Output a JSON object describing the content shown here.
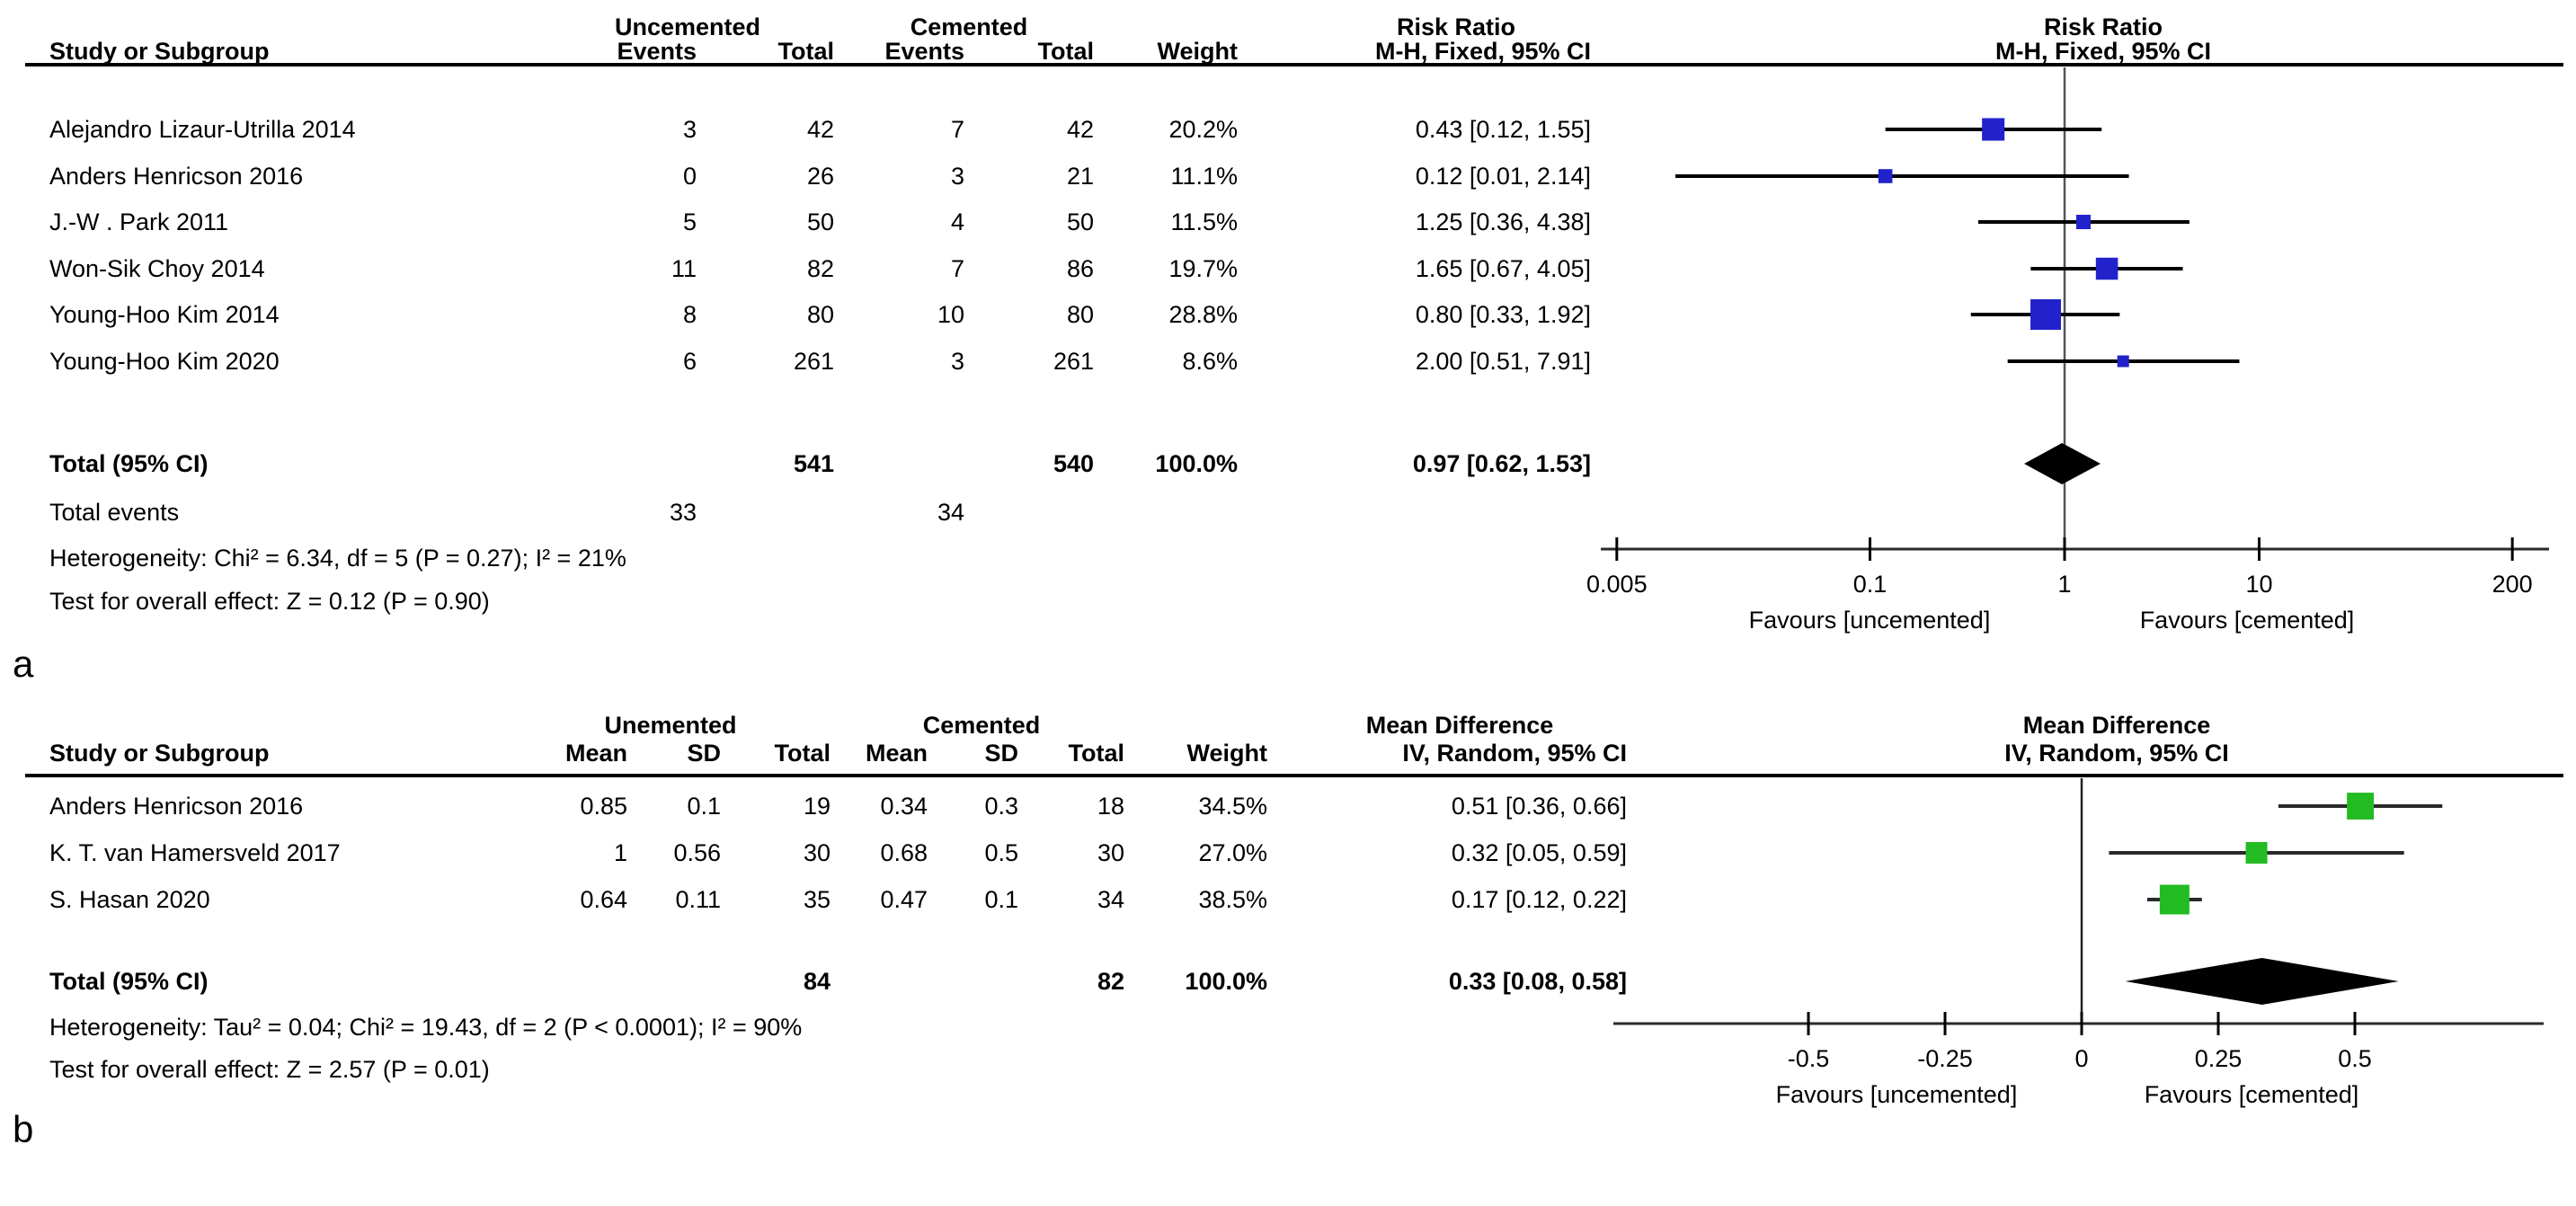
{
  "figure_labels": {
    "panel_a": "a",
    "panel_b": "b"
  },
  "panels": [
    {
      "label": "a",
      "marker_color": "#2222cc",
      "diamond_color": "#000000",
      "group_headers": [
        "Uncemented",
        "Cemented",
        "Risk Ratio",
        "Risk Ratio"
      ],
      "col_headers": [
        "Study or Subgroup",
        "Events",
        "Total",
        "Events",
        "Total",
        "Weight",
        "M-H, Fixed, 95% CI",
        "M-H, Fixed, 95% CI"
      ],
      "rows": [
        {
          "cells": [
            "Alejandro Lizaur-Utrilla 2014",
            "3",
            "42",
            "7",
            "42",
            "20.2%",
            "0.43 [0.12, 1.55]"
          ],
          "est": 0.43,
          "lo": 0.12,
          "hi": 1.55,
          "weight": 20.2
        },
        {
          "cells": [
            "Anders Henricson 2016",
            "0",
            "26",
            "3",
            "21",
            "11.1%",
            "0.12 [0.01, 2.14]"
          ],
          "est": 0.12,
          "lo": 0.01,
          "hi": 2.14,
          "weight": 11.1
        },
        {
          "cells": [
            "J.-W . Park 2011",
            "5",
            "50",
            "4",
            "50",
            "11.5%",
            "1.25 [0.36, 4.38]"
          ],
          "est": 1.25,
          "lo": 0.36,
          "hi": 4.38,
          "weight": 11.5
        },
        {
          "cells": [
            "Won-Sik Choy 2014",
            "11",
            "82",
            "7",
            "86",
            "19.7%",
            "1.65 [0.67, 4.05]"
          ],
          "est": 1.65,
          "lo": 0.67,
          "hi": 4.05,
          "weight": 19.7
        },
        {
          "cells": [
            "Young-Hoo Kim 2014",
            "8",
            "80",
            "10",
            "80",
            "28.8%",
            "0.80 [0.33, 1.92]"
          ],
          "est": 0.8,
          "lo": 0.33,
          "hi": 1.92,
          "weight": 28.8
        },
        {
          "cells": [
            "Young-Hoo Kim 2020",
            "6",
            "261",
            "3",
            "261",
            "8.6%",
            "2.00 [0.51, 7.91]"
          ],
          "est": 2.0,
          "lo": 0.51,
          "hi": 7.91,
          "weight": 8.6
        }
      ],
      "total_row": {
        "cells": [
          "Total (95% CI)",
          "",
          "541",
          "",
          "540",
          "100.0%",
          "0.97 [0.62, 1.53]"
        ],
        "est": 0.97,
        "lo": 0.62,
        "hi": 1.53
      },
      "total_events": {
        "label": "Total events",
        "v1": "33",
        "v2": "34"
      },
      "heterogeneity": "Heterogeneity: Chi² = 6.34, df = 5 (P = 0.27); I² = 21%",
      "overall_effect": "Test for overall effect: Z = 0.12 (P = 0.90)",
      "axis_tick_labels": [
        "0.005",
        "0.1",
        "1",
        "10",
        "200"
      ],
      "axis_tick_values": [
        0.005,
        0.1,
        1,
        10,
        200
      ],
      "favours_left": "Favours [uncemented]",
      "favours_right": "Favours [cemented]"
    },
    {
      "label": "b",
      "marker_color": "#22bb22",
      "diamond_color": "#000000",
      "group_headers": [
        "Unemented",
        "Cemented",
        "Mean Difference",
        "Mean Difference"
      ],
      "col_headers": [
        "Study or Subgroup",
        "Mean",
        "SD",
        "Total",
        "Mean",
        "SD",
        "Total",
        "Weight",
        "IV, Random, 95% CI",
        "IV, Random, 95% CI"
      ],
      "rows": [
        {
          "cells": [
            "Anders Henricson 2016",
            "0.85",
            "0.1",
            "19",
            "0.34",
            "0.3",
            "18",
            "34.5%",
            "0.51 [0.36, 0.66]"
          ],
          "est": 0.51,
          "lo": 0.36,
          "hi": 0.66,
          "weight": 34.5
        },
        {
          "cells": [
            "K. T. van Hamersveld 2017",
            "1",
            "0.56",
            "30",
            "0.68",
            "0.5",
            "30",
            "27.0%",
            "0.32 [0.05, 0.59]"
          ],
          "est": 0.32,
          "lo": 0.05,
          "hi": 0.59,
          "weight": 27.0
        },
        {
          "cells": [
            "S. Hasan 2020",
            "0.64",
            "0.11",
            "35",
            "0.47",
            "0.1",
            "34",
            "38.5%",
            "0.17 [0.12, 0.22]"
          ],
          "est": 0.17,
          "lo": 0.12,
          "hi": 0.22,
          "weight": 38.5
        }
      ],
      "total_row": {
        "cells": [
          "Total (95% CI)",
          "",
          "",
          "84",
          "",
          "",
          "82",
          "100.0%",
          "0.33 [0.08, 0.58]"
        ],
        "est": 0.33,
        "lo": 0.08,
        "hi": 0.58
      },
      "heterogeneity": "Heterogeneity: Tau² = 0.04; Chi² = 19.43, df = 2 (P < 0.0001); I² = 90%",
      "overall_effect": "Test for overall effect: Z = 2.57 (P = 0.01)",
      "axis_tick_labels": [
        "-0.5",
        "-0.25",
        "0",
        "0.25",
        "0.5"
      ],
      "axis_tick_values": [
        -0.5,
        -0.25,
        0,
        0.25,
        0.5
      ],
      "favours_left": "Favours [uncemented]",
      "favours_right": "Favours [cemented]"
    }
  ],
  "chart_data": [
    {
      "type": "scatter",
      "subtype": "forest-plot",
      "title": "Risk Ratio",
      "method": "M-H, Fixed, 95% CI",
      "group_labels": [
        "Uncemented",
        "Cemented"
      ],
      "x_scale": "log",
      "xlim": [
        0.005,
        200
      ],
      "x_ticks": [
        0.005,
        0.1,
        1,
        10,
        200
      ],
      "reference_line": 1,
      "categories": [
        "Alejandro Lizaur-Utrilla 2014",
        "Anders Henricson 2016",
        "J.-W . Park 2011",
        "Won-Sik Choy 2014",
        "Young-Hoo Kim 2014",
        "Young-Hoo Kim 2020"
      ],
      "estimates": [
        0.43,
        0.12,
        1.25,
        1.65,
        0.8,
        2.0
      ],
      "ci_low": [
        0.12,
        0.01,
        0.36,
        0.67,
        0.33,
        0.51
      ],
      "ci_high": [
        1.55,
        2.14,
        4.38,
        4.05,
        1.92,
        7.91
      ],
      "weights_pct": [
        20.2,
        11.1,
        11.5,
        19.7,
        28.8,
        8.6
      ],
      "events_uncemented": [
        3,
        0,
        5,
        11,
        8,
        6
      ],
      "total_uncemented": [
        42,
        26,
        50,
        82,
        80,
        261
      ],
      "events_cemented": [
        7,
        3,
        4,
        7,
        10,
        3
      ],
      "total_cemented": [
        42,
        21,
        50,
        86,
        80,
        261
      ],
      "summary": {
        "estimate": 0.97,
        "ci_low": 0.62,
        "ci_high": 1.53,
        "total_uncemented": 541,
        "total_cemented": 540,
        "total_events_uncemented": 33,
        "total_events_cemented": 34,
        "weight_pct": 100.0
      },
      "heterogeneity": "Chi² = 6.34, df = 5 (P = 0.27); I² = 21%",
      "overall_effect": "Z = 0.12 (P = 0.90)",
      "xlabel_left": "Favours [uncemented]",
      "xlabel_right": "Favours [cemented]",
      "marker_color": "#2222cc"
    },
    {
      "type": "scatter",
      "subtype": "forest-plot",
      "title": "Mean Difference",
      "method": "IV, Random, 95% CI",
      "group_labels": [
        "Unemented",
        "Cemented"
      ],
      "x_scale": "linear",
      "xlim": [
        -0.85,
        0.85
      ],
      "x_ticks": [
        -0.5,
        -0.25,
        0,
        0.25,
        0.5
      ],
      "reference_line": 0,
      "categories": [
        "Anders Henricson 2016",
        "K. T. van Hamersveld 2017",
        "S. Hasan 2020"
      ],
      "estimates": [
        0.51,
        0.32,
        0.17
      ],
      "ci_low": [
        0.36,
        0.05,
        0.12
      ],
      "ci_high": [
        0.66,
        0.59,
        0.22
      ],
      "weights_pct": [
        34.5,
        27.0,
        38.5
      ],
      "mean_uncemented": [
        0.85,
        1,
        0.64
      ],
      "sd_uncemented": [
        0.1,
        0.56,
        0.11
      ],
      "total_uncemented": [
        19,
        30,
        35
      ],
      "mean_cemented": [
        0.34,
        0.68,
        0.47
      ],
      "sd_cemented": [
        0.3,
        0.5,
        0.1
      ],
      "total_cemented": [
        18,
        30,
        34
      ],
      "summary": {
        "estimate": 0.33,
        "ci_low": 0.08,
        "ci_high": 0.58,
        "total_uncemented": 84,
        "total_cemented": 82,
        "weight_pct": 100.0
      },
      "heterogeneity": "Tau² = 0.04; Chi² = 19.43, df = 2 (P < 0.0001); I² = 90%",
      "overall_effect": "Z = 2.57 (P = 0.01)",
      "xlabel_left": "Favours [uncemented]",
      "xlabel_right": "Favours [cemented]",
      "marker_color": "#22bb22"
    }
  ]
}
